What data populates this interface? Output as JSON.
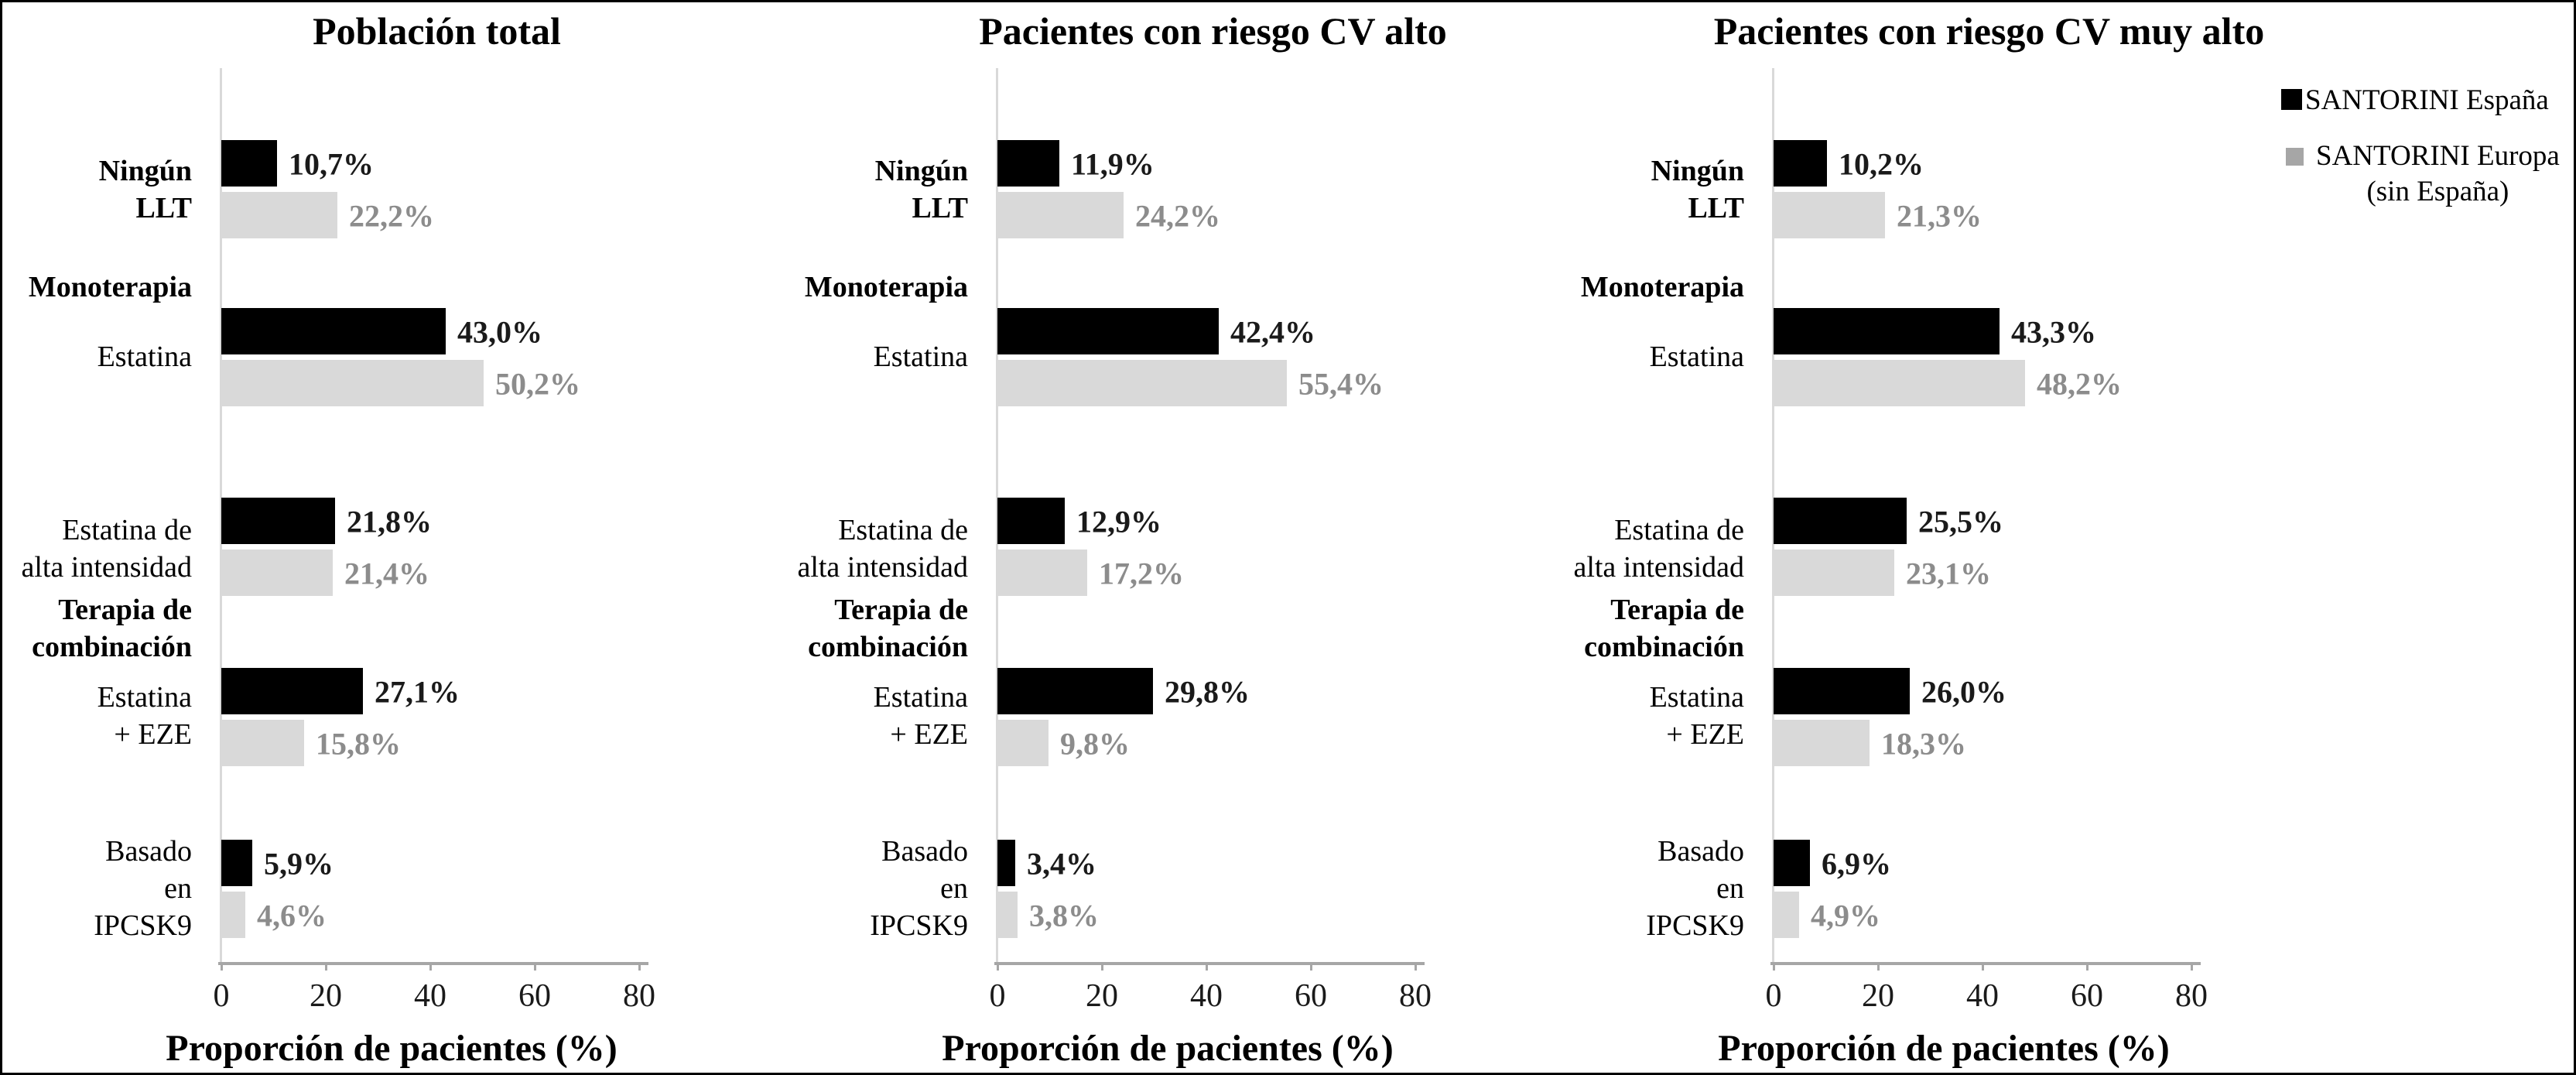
{
  "figure_type": "grouped horizontal bar chart, 3 panels",
  "colors": {
    "espana_bar": "#000000",
    "europa_bar": "#d9d9d9",
    "europa_value_text": "#8c8c8c",
    "axis_line": "#a6a6a6",
    "legend_europa_swatch": "#a6a6a6"
  },
  "legend": {
    "items": [
      {
        "label": "SANTORINI España",
        "color": "#000000"
      },
      {
        "label": "SANTORINI Europa",
        "label2": "(sin España)",
        "color": "#a6a6a6"
      }
    ]
  },
  "rows": [
    {
      "label_lines": [
        "Ningún",
        "LLT"
      ],
      "label_bold": true,
      "section_lines": []
    },
    {
      "label_lines": [
        "Estatina"
      ],
      "label_bold": false,
      "section_lines": [
        "Monoterapia"
      ]
    },
    {
      "label_lines": [
        "Estatina de",
        "alta intensidad"
      ],
      "label_bold": false,
      "section_lines": []
    },
    {
      "label_lines": [
        "Estatina",
        "+ EZE"
      ],
      "label_bold": false,
      "section_lines": [
        "Terapia de",
        "combinación"
      ]
    },
    {
      "label_lines": [
        "Basado",
        "en",
        "IPCSK9"
      ],
      "label_bold": false,
      "section_lines": []
    }
  ],
  "chart_data": [
    {
      "type": "bar",
      "orientation": "horizontal",
      "title": "Población total",
      "xlabel": "Proporción de pacientes (%)",
      "xlim": [
        0,
        80
      ],
      "x_ticks": [
        "0",
        "20",
        "40",
        "60",
        "80"
      ],
      "grid": false,
      "categories": [
        "Ningún LLT",
        "Monoterapia: Estatina",
        "Estatina de alta intensidad",
        "Terapia de combinación: Estatina + EZE",
        "Basado en IPCSK9"
      ],
      "series": [
        {
          "name": "SANTORINI España",
          "values": [
            10.7,
            43.0,
            21.8,
            27.1,
            5.9
          ],
          "labels": [
            "10,7%",
            "43,0%",
            "21,8%",
            "27,1%",
            "5,9%"
          ]
        },
        {
          "name": "SANTORINI Europa (sin España)",
          "values": [
            22.2,
            50.2,
            21.4,
            15.8,
            4.6
          ],
          "labels": [
            "22,2%",
            "50,2%",
            "21,4%",
            "15,8%",
            "4,6%"
          ]
        }
      ]
    },
    {
      "type": "bar",
      "orientation": "horizontal",
      "title": "Pacientes con riesgo CV alto",
      "xlabel": "Proporción de pacientes (%)",
      "xlim": [
        0,
        80
      ],
      "x_ticks": [
        "0",
        "20",
        "40",
        "60",
        "80"
      ],
      "grid": false,
      "categories": [
        "Ningún LLT",
        "Monoterapia: Estatina",
        "Estatina de alta intensidad",
        "Terapia de combinación: Estatina + EZE",
        "Basado en IPCSK9"
      ],
      "series": [
        {
          "name": "SANTORINI España",
          "values": [
            11.9,
            42.4,
            12.9,
            29.8,
            3.4
          ],
          "labels": [
            "11,9%",
            "42,4%",
            "12,9%",
            "29,8%",
            "3,4%"
          ]
        },
        {
          "name": "SANTORINI Europa (sin España)",
          "values": [
            24.2,
            55.4,
            17.2,
            9.8,
            3.8
          ],
          "labels": [
            "24,2%",
            "55,4%",
            "17,2%",
            "9,8%",
            "3,8%"
          ]
        }
      ]
    },
    {
      "type": "bar",
      "orientation": "horizontal",
      "title": "Pacientes con riesgo CV muy alto",
      "xlabel": "Proporción de pacientes (%)",
      "xlim": [
        0,
        80
      ],
      "x_ticks": [
        "0",
        "20",
        "40",
        "60",
        "80"
      ],
      "grid": false,
      "categories": [
        "Ningún LLT",
        "Monoterapia: Estatina",
        "Estatina de alta intensidad",
        "Terapia de combinación: Estatina + EZE",
        "Basado en IPCSK9"
      ],
      "series": [
        {
          "name": "SANTORINI España",
          "values": [
            10.2,
            43.3,
            25.5,
            26.0,
            6.9
          ],
          "labels": [
            "10,2%",
            "43,3%",
            "25,5%",
            "26,0%",
            "6,9%"
          ]
        },
        {
          "name": "SANTORINI Europa (sin España)",
          "values": [
            21.3,
            48.2,
            23.1,
            18.3,
            4.9
          ],
          "labels": [
            "21,3%",
            "48,2%",
            "23,1%",
            "18,3%",
            "4,9%"
          ]
        }
      ]
    }
  ]
}
